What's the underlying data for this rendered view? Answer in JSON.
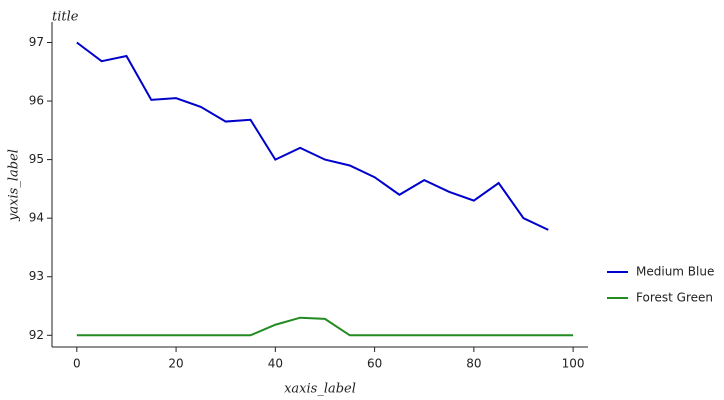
{
  "chart_data": {
    "type": "line",
    "title": "title",
    "x_label": "xaxis_label",
    "y_label": "yaxis_label",
    "x": [
      0,
      5,
      10,
      15,
      20,
      25,
      30,
      35,
      40,
      45,
      50,
      55,
      60,
      65,
      70,
      75,
      80,
      85,
      90,
      95,
      100
    ],
    "series": [
      {
        "name": "Medium Blue",
        "color": "#0000cd",
        "values": [
          97.0,
          96.68,
          96.77,
          96.02,
          96.05,
          95.9,
          95.65,
          95.68,
          95.0,
          95.2,
          95.0,
          94.9,
          94.7,
          94.4,
          94.65,
          94.45,
          94.3,
          94.6,
          94.0,
          93.8,
          null
        ]
      },
      {
        "name": "Forest Green",
        "color": "#228b22",
        "values": [
          92.0,
          92.0,
          92.0,
          92.0,
          92.0,
          92.0,
          92.0,
          92.0,
          92.18,
          92.3,
          92.28,
          92.0,
          92.0,
          92.0,
          92.0,
          92.0,
          92.0,
          92.0,
          92.0,
          92.0,
          92.0
        ]
      }
    ],
    "xlim": [
      -5,
      103
    ],
    "ylim": [
      91.8,
      97.35
    ],
    "xticks": [
      0,
      20,
      40,
      60,
      80,
      100
    ],
    "yticks": [
      92,
      93,
      94,
      95,
      96,
      97
    ],
    "legend": "right"
  }
}
